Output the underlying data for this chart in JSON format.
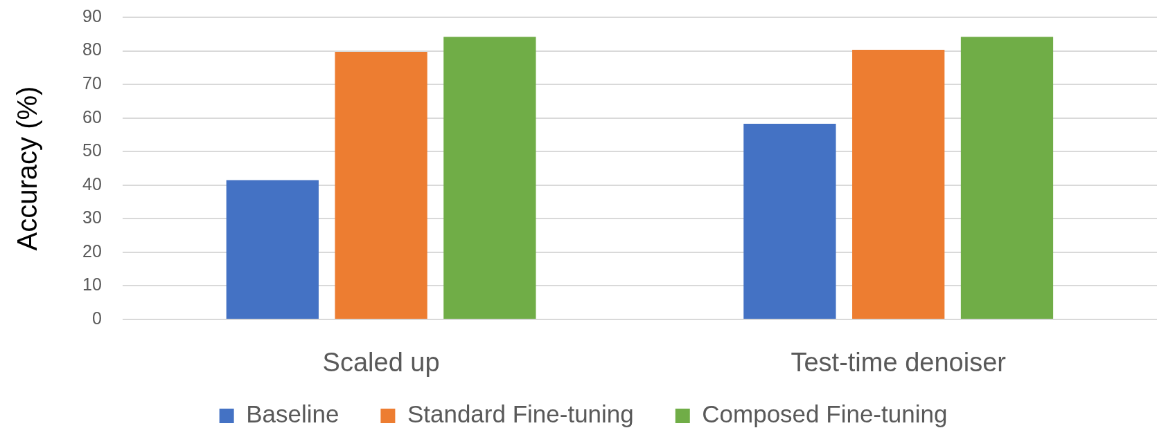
{
  "chart_data": {
    "type": "bar",
    "ylabel": "Accuracy (%)",
    "categories": [
      "Scaled up",
      "Test-time denoiser"
    ],
    "series": [
      {
        "name": "Baseline",
        "color": "#4472c4",
        "values": [
          41.5,
          58.3
        ]
      },
      {
        "name": "Standard Fine-tuning",
        "color": "#ed7d31",
        "values": [
          79.7,
          80.3
        ]
      },
      {
        "name": "Composed Fine-tuning",
        "color": "#70ad47",
        "values": [
          84.2,
          84.2
        ]
      }
    ],
    "ylim": [
      0,
      90
    ],
    "yticks": [
      0,
      10,
      20,
      30,
      40,
      50,
      60,
      70,
      80,
      90
    ],
    "grid": "y",
    "legend": "bottom"
  }
}
